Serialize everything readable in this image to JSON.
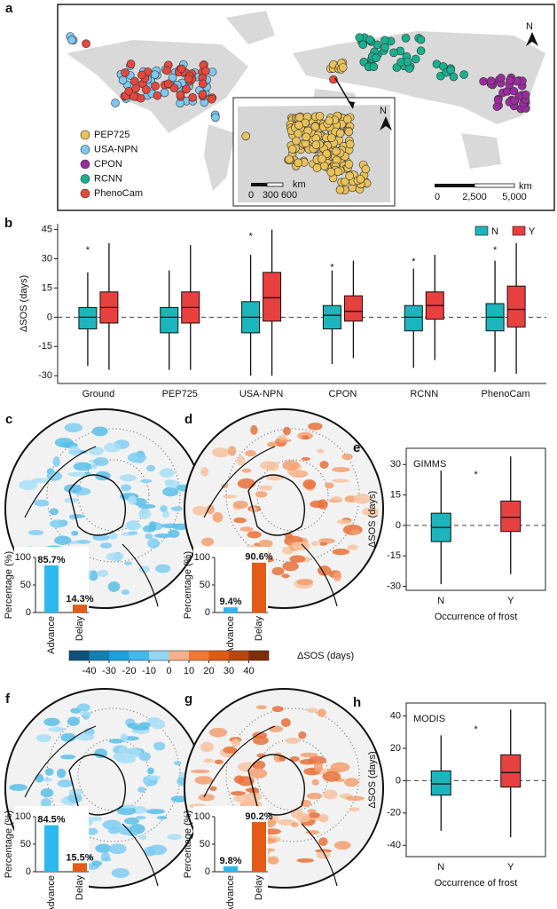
{
  "chart_data": [
    {
      "type": "map",
      "panel_label": "a",
      "series": [
        {
          "name": "PEP725",
          "color": "#e9c25b"
        },
        {
          "name": "USA-NPN",
          "color": "#7fc7f0"
        },
        {
          "name": "CPON",
          "color": "#9a2c9e"
        },
        {
          "name": "RCNN",
          "color": "#19b08f"
        },
        {
          "name": "PhenoCam",
          "color": "#e8473b"
        }
      ],
      "north_label": "N",
      "scale_unit": "km",
      "scale_labels": [
        "0",
        "2,500",
        "5,000"
      ],
      "inset_scale_unit": "km",
      "inset_scale_labels": [
        "0",
        "300",
        "600"
      ]
    },
    {
      "type": "box",
      "panel_label": "b",
      "ylabel": "ΔSOS (days)",
      "categories": [
        "Ground",
        "PEP725",
        "USA-NPN",
        "CPON",
        "RCNN",
        "PhenoCam"
      ],
      "ylim": [
        -34,
        48
      ],
      "yticks": [
        -30,
        -15,
        0,
        15,
        30,
        45
      ],
      "reference_line": 0,
      "legend_position": "upper right",
      "series": [
        {
          "name": "N",
          "color": "#1cb5be",
          "whisker_low": [
            -25,
            -27,
            -30,
            -24,
            -26,
            -28
          ],
          "q1": [
            -6,
            -8,
            -8,
            -6,
            -7,
            -7
          ],
          "median": [
            0,
            0,
            0,
            1,
            0,
            0
          ],
          "q3": [
            5,
            5,
            8,
            6,
            6,
            7
          ],
          "whisker_high": [
            23,
            24,
            32,
            24,
            25,
            29
          ]
        },
        {
          "name": "Y",
          "color": "#e8403f",
          "whisker_low": [
            -27,
            -27,
            -30,
            -21,
            -22,
            -29
          ],
          "q1": [
            -3,
            -3,
            -2,
            -2,
            -1,
            -5
          ],
          "median": [
            5,
            5,
            10,
            3,
            6,
            4
          ],
          "q3": [
            13,
            13,
            23,
            11,
            13,
            16
          ],
          "whisker_high": [
            38,
            37,
            45,
            29,
            32,
            38
          ]
        }
      ],
      "significance": [
        "*",
        null,
        "*",
        "*",
        "*",
        "*"
      ]
    },
    {
      "type": "bar",
      "panel_label": "c",
      "ylabel": "Percentage (%)",
      "categories": [
        "Advance",
        "Delay"
      ],
      "values": [
        85.7,
        14.3
      ],
      "value_labels": [
        "85.7%",
        "14.3%"
      ],
      "colors": [
        "#2db8ee",
        "#e35b16"
      ],
      "ylim": [
        0,
        100
      ],
      "yticks": [
        0,
        50,
        100
      ]
    },
    {
      "type": "bar",
      "panel_label": "d",
      "ylabel": "Percentage (%)",
      "categories": [
        "Advance",
        "Delay"
      ],
      "values": [
        9.4,
        90.6
      ],
      "value_labels": [
        "9.4%",
        "90.6%"
      ],
      "colors": [
        "#2db8ee",
        "#e35b16"
      ],
      "ylim": [
        0,
        100
      ],
      "yticks": [
        0,
        50,
        100
      ]
    },
    {
      "type": "box",
      "panel_label": "e",
      "ylabel": "ΔSOS (days)",
      "xlabel": "Occurrence of frost",
      "annotation": "GIMMS",
      "categories": [
        "N",
        "Y"
      ],
      "colors": [
        "#1cb5be",
        "#e8403f"
      ],
      "ylim": [
        -32,
        38
      ],
      "yticks": [
        -30,
        -15,
        0,
        15,
        30
      ],
      "reference_line": 0,
      "whisker_low": [
        -29,
        -24
      ],
      "q1": [
        -8,
        -3
      ],
      "median": [
        -1,
        4
      ],
      "q3": [
        6,
        12
      ],
      "whisker_high": [
        27,
        34
      ],
      "significance": "*"
    },
    {
      "type": "colorbar",
      "label": "ΔSOS (days)",
      "xlim": [
        -50,
        50
      ],
      "xticks": [
        -40,
        -30,
        -20,
        -10,
        0,
        10,
        20,
        30,
        40
      ],
      "colors": [
        "#0b4f7a",
        "#137fb3",
        "#1ea0db",
        "#43b8ec",
        "#92d6f4",
        "#f6b08a",
        "#ef7a37",
        "#dc5a12",
        "#b8460d",
        "#7c2e08"
      ]
    },
    {
      "type": "bar",
      "panel_label": "f",
      "ylabel": "Percentage (%)",
      "categories": [
        "Advance",
        "Delay"
      ],
      "values": [
        84.5,
        15.5
      ],
      "value_labels": [
        "84.5%",
        "15.5%"
      ],
      "colors": [
        "#2db8ee",
        "#e35b16"
      ],
      "ylim": [
        0,
        100
      ],
      "yticks": [
        0,
        50,
        100
      ]
    },
    {
      "type": "bar",
      "panel_label": "g",
      "ylabel": "Percentage (%)",
      "categories": [
        "Advance",
        "Delay"
      ],
      "values": [
        9.8,
        90.2
      ],
      "value_labels": [
        "9.8%",
        "90.2%"
      ],
      "colors": [
        "#2db8ee",
        "#e35b16"
      ],
      "ylim": [
        0,
        100
      ],
      "yticks": [
        0,
        50,
        100
      ]
    },
    {
      "type": "box",
      "panel_label": "h",
      "ylabel": "ΔSOS (days)",
      "xlabel": "Occurrence of frost",
      "annotation": "MODIS",
      "categories": [
        "N",
        "Y"
      ],
      "colors": [
        "#1cb5be",
        "#e8403f"
      ],
      "ylim": [
        -47,
        48
      ],
      "yticks": [
        -40,
        -20,
        0,
        20,
        40
      ],
      "reference_line": 0,
      "whisker_low": [
        -31,
        -35
      ],
      "q1": [
        -9,
        -4
      ],
      "median": [
        -2,
        5
      ],
      "q3": [
        6,
        16
      ],
      "whisker_high": [
        28,
        44
      ],
      "significance": "*"
    }
  ]
}
